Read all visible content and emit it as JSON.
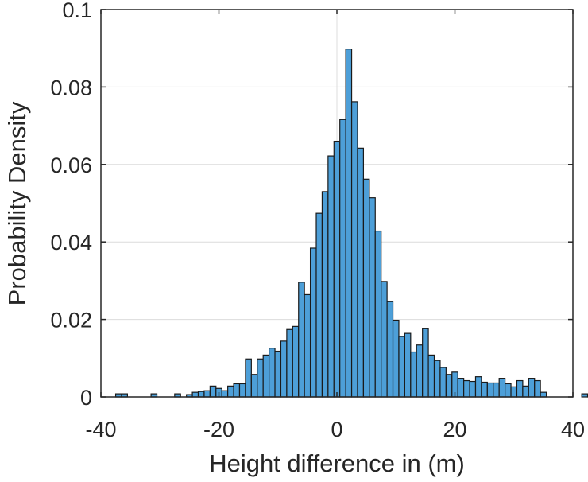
{
  "chart_data": {
    "type": "bar",
    "title": "",
    "xlabel": "Height difference in (m)",
    "ylabel": "Probability Density",
    "xlim": [
      -40,
      40
    ],
    "ylim": [
      0,
      0.1
    ],
    "xticks": [
      -40,
      -20,
      0,
      20,
      40
    ],
    "xtick_labels": [
      "-40",
      "-20",
      "0",
      "20",
      "40"
    ],
    "yticks": [
      0,
      0.02,
      0.04,
      0.06,
      0.08,
      0.1
    ],
    "ytick_labels": [
      "0",
      "0.02",
      "0.04",
      "0.06",
      "0.08",
      "0.1"
    ],
    "grid": true,
    "bin_width": 1,
    "bin_edges_start": -37.5,
    "values": [
      0.0008,
      0.0008,
      0,
      0,
      0,
      0,
      0.0008,
      0,
      0,
      0,
      0.0008,
      0,
      0.0006,
      0.0012,
      0.0014,
      0.0016,
      0.0028,
      0.0022,
      0.0016,
      0.0028,
      0.0034,
      0.0034,
      0.0098,
      0.0058,
      0.0098,
      0.0108,
      0.0126,
      0.0118,
      0.0144,
      0.0174,
      0.0182,
      0.0296,
      0.0264,
      0.0384,
      0.0474,
      0.053,
      0.0622,
      0.066,
      0.0716,
      0.0898,
      0.0762,
      0.0642,
      0.0562,
      0.0514,
      0.0428,
      0.0298,
      0.0246,
      0.0198,
      0.0156,
      0.0164,
      0.0116,
      0.0134,
      0.0176,
      0.0108,
      0.0094,
      0.0076,
      0.0058,
      0.0064,
      0.0048,
      0.0042,
      0.004,
      0.0052,
      0.0038,
      0.0036,
      0.0036,
      0.0048,
      0.0034,
      0.0026,
      0.0042,
      0.0028,
      0.0048,
      0.0042,
      0.0012,
      0,
      0,
      0,
      0,
      0,
      0,
      0.0008,
      0.0008,
      0,
      0,
      0
    ]
  },
  "colors": {
    "bar_fill": "#4d9fd8",
    "bar_edge": "#1a1a1a",
    "axis": "#262626",
    "grid": "#dcdcdc"
  }
}
